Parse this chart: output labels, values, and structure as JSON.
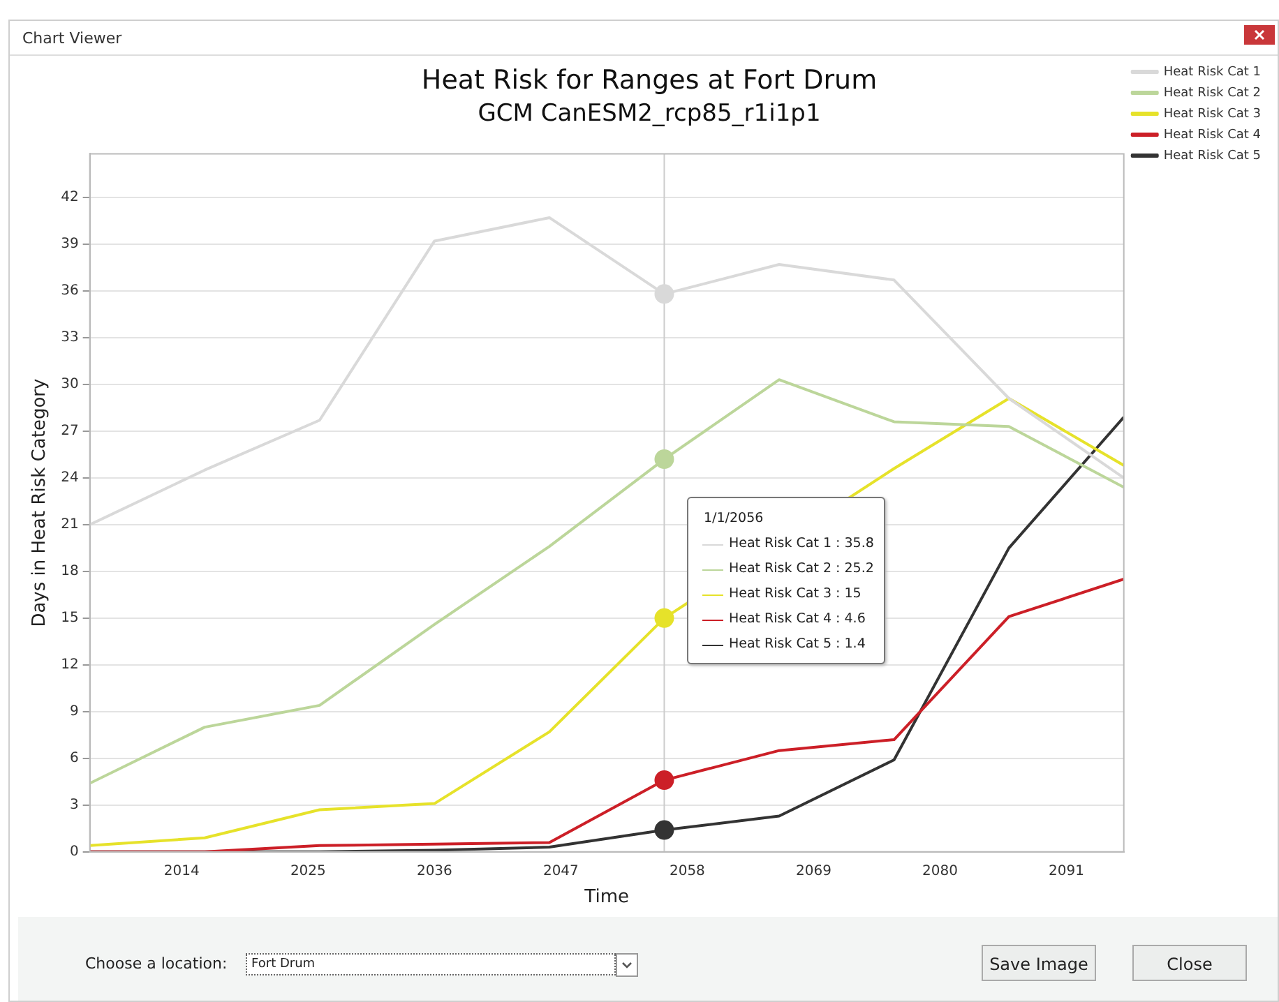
{
  "chart_data": {
    "type": "line",
    "title": "Heat Risk for Ranges at Fort Drum",
    "subtitle": "GCM CanESM2_rcp85_r1i1p1",
    "xlabel": "Time",
    "ylabel": "Days in Heat Risk Category",
    "x": [
      2006,
      2016,
      2026,
      2036,
      2046,
      2056,
      2066,
      2076,
      2086,
      2096
    ],
    "series": [
      {
        "name": "Heat Risk Cat 1",
        "color": "#d9d9d9",
        "values": [
          21.0,
          24.5,
          27.7,
          39.2,
          40.7,
          35.8,
          37.7,
          36.7,
          29.1,
          24.0
        ]
      },
      {
        "name": "Heat Risk Cat 2",
        "color": "#bcd69a",
        "values": [
          4.4,
          8.0,
          9.4,
          14.6,
          19.6,
          25.2,
          30.3,
          27.6,
          27.3,
          23.4
        ]
      },
      {
        "name": "Heat Risk Cat 3",
        "color": "#e6e22a",
        "values": [
          0.4,
          0.9,
          2.7,
          3.1,
          7.7,
          15,
          null,
          24.6,
          29.1,
          24.8
        ]
      },
      {
        "name": "Heat Risk Cat 4",
        "color": "#cc1f27",
        "values": [
          0.0,
          0.0,
          0.4,
          0.5,
          0.6,
          4.6,
          6.5,
          7.2,
          15.1,
          17.5
        ]
      },
      {
        "name": "Heat Risk Cat 5",
        "color": "#333333",
        "values": [
          0.0,
          0.0,
          0.0,
          0.1,
          0.3,
          1.4,
          2.3,
          5.9,
          19.5,
          27.9
        ]
      }
    ],
    "xlim": [
      2006,
      2096
    ],
    "xticks": [
      2014,
      2025,
      2036,
      2047,
      2058,
      2069,
      2080,
      2091
    ],
    "ylim": [
      0,
      44.8
    ],
    "yticks": [
      0,
      3,
      6,
      9,
      12,
      15,
      18,
      21,
      24,
      27,
      30,
      33,
      36,
      39,
      42
    ],
    "ref_lines": [
      {
        "axis": "x",
        "value": 2056,
        "color": "#cccccc"
      }
    ],
    "annotations": [
      "Chart Viewer",
      "1/1/2056",
      "Heat Risk Cat 1 : 35.8",
      "Heat Risk Cat 2 : 25.2",
      "Heat Risk Cat 3 : 15",
      "Heat Risk Cat 4 : 4.6",
      "Heat Risk Cat 5 : 1.4",
      "Choose a location:",
      "Fort Drum",
      "Save Image",
      "Close"
    ],
    "grid": "y",
    "legend": "top right",
    "marker": "none",
    "line_style": "solid"
  }
}
